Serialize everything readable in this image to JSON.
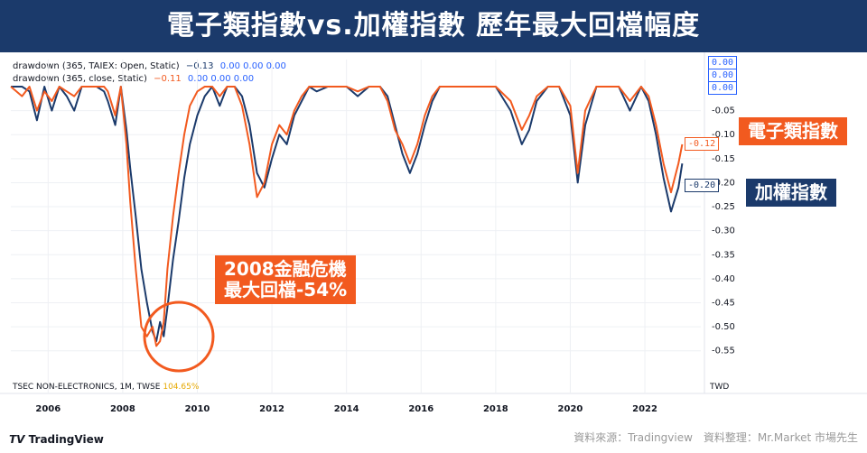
{
  "title": "電子類指數vs.加權指數  歷年最大回檔幅度",
  "legend": [
    {
      "label": "drawdown (365, TAIEX: Open, Static)",
      "value": "−0.13",
      "extra": "0.00  0.00  0.00",
      "color": "#1b3a6b"
    },
    {
      "label": "drawdown (365, close, Static)",
      "value": "−0.11",
      "extra": "0.00  0.00  0.00",
      "color": "#f25a1f"
    }
  ],
  "price_tags": [
    "0.00",
    "0.00",
    "0.00",
    "-0.12",
    "-0.20"
  ],
  "series_labels": {
    "electronics": "電子類指數",
    "taiex": "加權指數"
  },
  "callout": {
    "line1": "2008金融危機",
    "line2": "最大回檔-54%"
  },
  "bottom_bar": {
    "symbol": "TSEC NON-ELECTRONICS, 1M, TWSE",
    "pct": "104.65%",
    "currency": "TWD"
  },
  "source": "資料來源：Tradingview　資料整理：Mr.Market 市場先生",
  "tv_logo": "TradingView",
  "colors": {
    "electronics": "#f25a1f",
    "taiex": "#1b3a6b",
    "banner": "#1b3a6b"
  },
  "chart_data": {
    "type": "line",
    "title": "電子類指數vs.加權指數  歷年最大回檔幅度",
    "y_ticks": [
      "-0.05",
      "-0.10",
      "-0.15",
      "-0.20",
      "-0.25",
      "-0.30",
      "-0.35",
      "-0.40",
      "-0.45",
      "-0.50",
      "-0.55"
    ],
    "ylim": [
      -0.59,
      0.0
    ],
    "x_ticks": [
      "2006",
      "2008",
      "2010",
      "2012",
      "2014",
      "2016",
      "2018",
      "2020",
      "2022"
    ],
    "xlim": [
      2005.0,
      2023.5
    ],
    "series": [
      {
        "name": "加權指數",
        "color": "#1b3a6b",
        "x": [
          2005.0,
          2005.3,
          2005.5,
          2005.7,
          2005.9,
          2006.1,
          2006.3,
          2006.5,
          2006.7,
          2006.9,
          2007.1,
          2007.3,
          2007.5,
          2007.6,
          2007.8,
          2007.95,
          2008.1,
          2008.2,
          2008.35,
          2008.5,
          2008.65,
          2008.8,
          2008.9,
          2009.0,
          2009.1,
          2009.2,
          2009.35,
          2009.5,
          2009.65,
          2009.8,
          2010.0,
          2010.2,
          2010.4,
          2010.6,
          2010.8,
          2011.0,
          2011.2,
          2011.4,
          2011.6,
          2011.8,
          2012.0,
          2012.2,
          2012.4,
          2012.6,
          2012.8,
          2013.0,
          2013.2,
          2013.5,
          2013.8,
          2014.0,
          2014.3,
          2014.6,
          2014.9,
          2015.1,
          2015.3,
          2015.5,
          2015.7,
          2015.9,
          2016.1,
          2016.3,
          2016.5,
          2016.7,
          2017.0,
          2017.3,
          2017.6,
          2018.0,
          2018.4,
          2018.7,
          2018.9,
          2019.1,
          2019.4,
          2019.7,
          2020.0,
          2020.2,
          2020.4,
          2020.7,
          2021.0,
          2021.3,
          2021.6,
          2021.9,
          2022.1,
          2022.3,
          2022.5,
          2022.7,
          2022.9,
          2023.0
        ],
        "y": [
          0.0,
          0.0,
          -0.01,
          -0.07,
          0.0,
          -0.05,
          0.0,
          -0.02,
          -0.05,
          0.0,
          0.0,
          0.0,
          -0.01,
          -0.03,
          -0.08,
          0.0,
          -0.09,
          -0.17,
          -0.27,
          -0.38,
          -0.45,
          -0.51,
          -0.53,
          -0.49,
          -0.52,
          -0.46,
          -0.36,
          -0.28,
          -0.19,
          -0.12,
          -0.06,
          -0.02,
          0.0,
          -0.04,
          0.0,
          0.0,
          -0.02,
          -0.08,
          -0.18,
          -0.21,
          -0.15,
          -0.1,
          -0.12,
          -0.06,
          -0.03,
          0.0,
          -0.01,
          0.0,
          0.0,
          0.0,
          -0.02,
          0.0,
          0.0,
          -0.02,
          -0.08,
          -0.14,
          -0.18,
          -0.14,
          -0.08,
          -0.03,
          0.0,
          0.0,
          0.0,
          0.0,
          0.0,
          0.0,
          -0.05,
          -0.12,
          -0.09,
          -0.03,
          0.0,
          0.0,
          -0.06,
          -0.2,
          -0.08,
          0.0,
          0.0,
          0.0,
          -0.05,
          0.0,
          -0.03,
          -0.1,
          -0.19,
          -0.26,
          -0.21,
          -0.16
        ]
      },
      {
        "name": "電子類指數",
        "color": "#f25a1f",
        "x": [
          2005.0,
          2005.3,
          2005.5,
          2005.7,
          2005.9,
          2006.1,
          2006.3,
          2006.5,
          2006.7,
          2006.9,
          2007.1,
          2007.3,
          2007.5,
          2007.6,
          2007.8,
          2007.95,
          2008.1,
          2008.2,
          2008.35,
          2008.5,
          2008.65,
          2008.8,
          2008.9,
          2009.0,
          2009.1,
          2009.2,
          2009.35,
          2009.5,
          2009.65,
          2009.8,
          2010.0,
          2010.2,
          2010.4,
          2010.6,
          2010.8,
          2011.0,
          2011.2,
          2011.4,
          2011.6,
          2011.8,
          2012.0,
          2012.2,
          2012.4,
          2012.6,
          2012.8,
          2013.0,
          2013.2,
          2013.5,
          2013.8,
          2014.0,
          2014.3,
          2014.6,
          2014.9,
          2015.1,
          2015.3,
          2015.5,
          2015.7,
          2015.9,
          2016.1,
          2016.3,
          2016.5,
          2016.7,
          2017.0,
          2017.3,
          2017.6,
          2018.0,
          2018.4,
          2018.7,
          2018.9,
          2019.1,
          2019.4,
          2019.7,
          2020.0,
          2020.2,
          2020.4,
          2020.7,
          2021.0,
          2021.3,
          2021.6,
          2021.9,
          2022.1,
          2022.3,
          2022.5,
          2022.7,
          2022.9,
          2023.0
        ],
        "y": [
          0.0,
          -0.02,
          0.0,
          -0.05,
          -0.01,
          -0.03,
          0.0,
          -0.01,
          -0.02,
          0.0,
          0.0,
          0.0,
          0.0,
          -0.01,
          -0.06,
          0.0,
          -0.12,
          -0.24,
          -0.38,
          -0.5,
          -0.52,
          -0.5,
          -0.54,
          -0.53,
          -0.49,
          -0.38,
          -0.27,
          -0.18,
          -0.1,
          -0.04,
          -0.01,
          0.0,
          0.0,
          -0.02,
          0.0,
          0.0,
          -0.04,
          -0.12,
          -0.23,
          -0.2,
          -0.12,
          -0.08,
          -0.1,
          -0.05,
          -0.02,
          0.0,
          0.0,
          0.0,
          0.0,
          0.0,
          -0.01,
          0.0,
          0.0,
          -0.03,
          -0.09,
          -0.12,
          -0.16,
          -0.12,
          -0.06,
          -0.02,
          0.0,
          0.0,
          0.0,
          0.0,
          0.0,
          0.0,
          -0.03,
          -0.09,
          -0.06,
          -0.02,
          0.0,
          0.0,
          -0.04,
          -0.18,
          -0.05,
          0.0,
          0.0,
          0.0,
          -0.03,
          0.0,
          -0.02,
          -0.08,
          -0.16,
          -0.22,
          -0.16,
          -0.12
        ]
      }
    ]
  }
}
